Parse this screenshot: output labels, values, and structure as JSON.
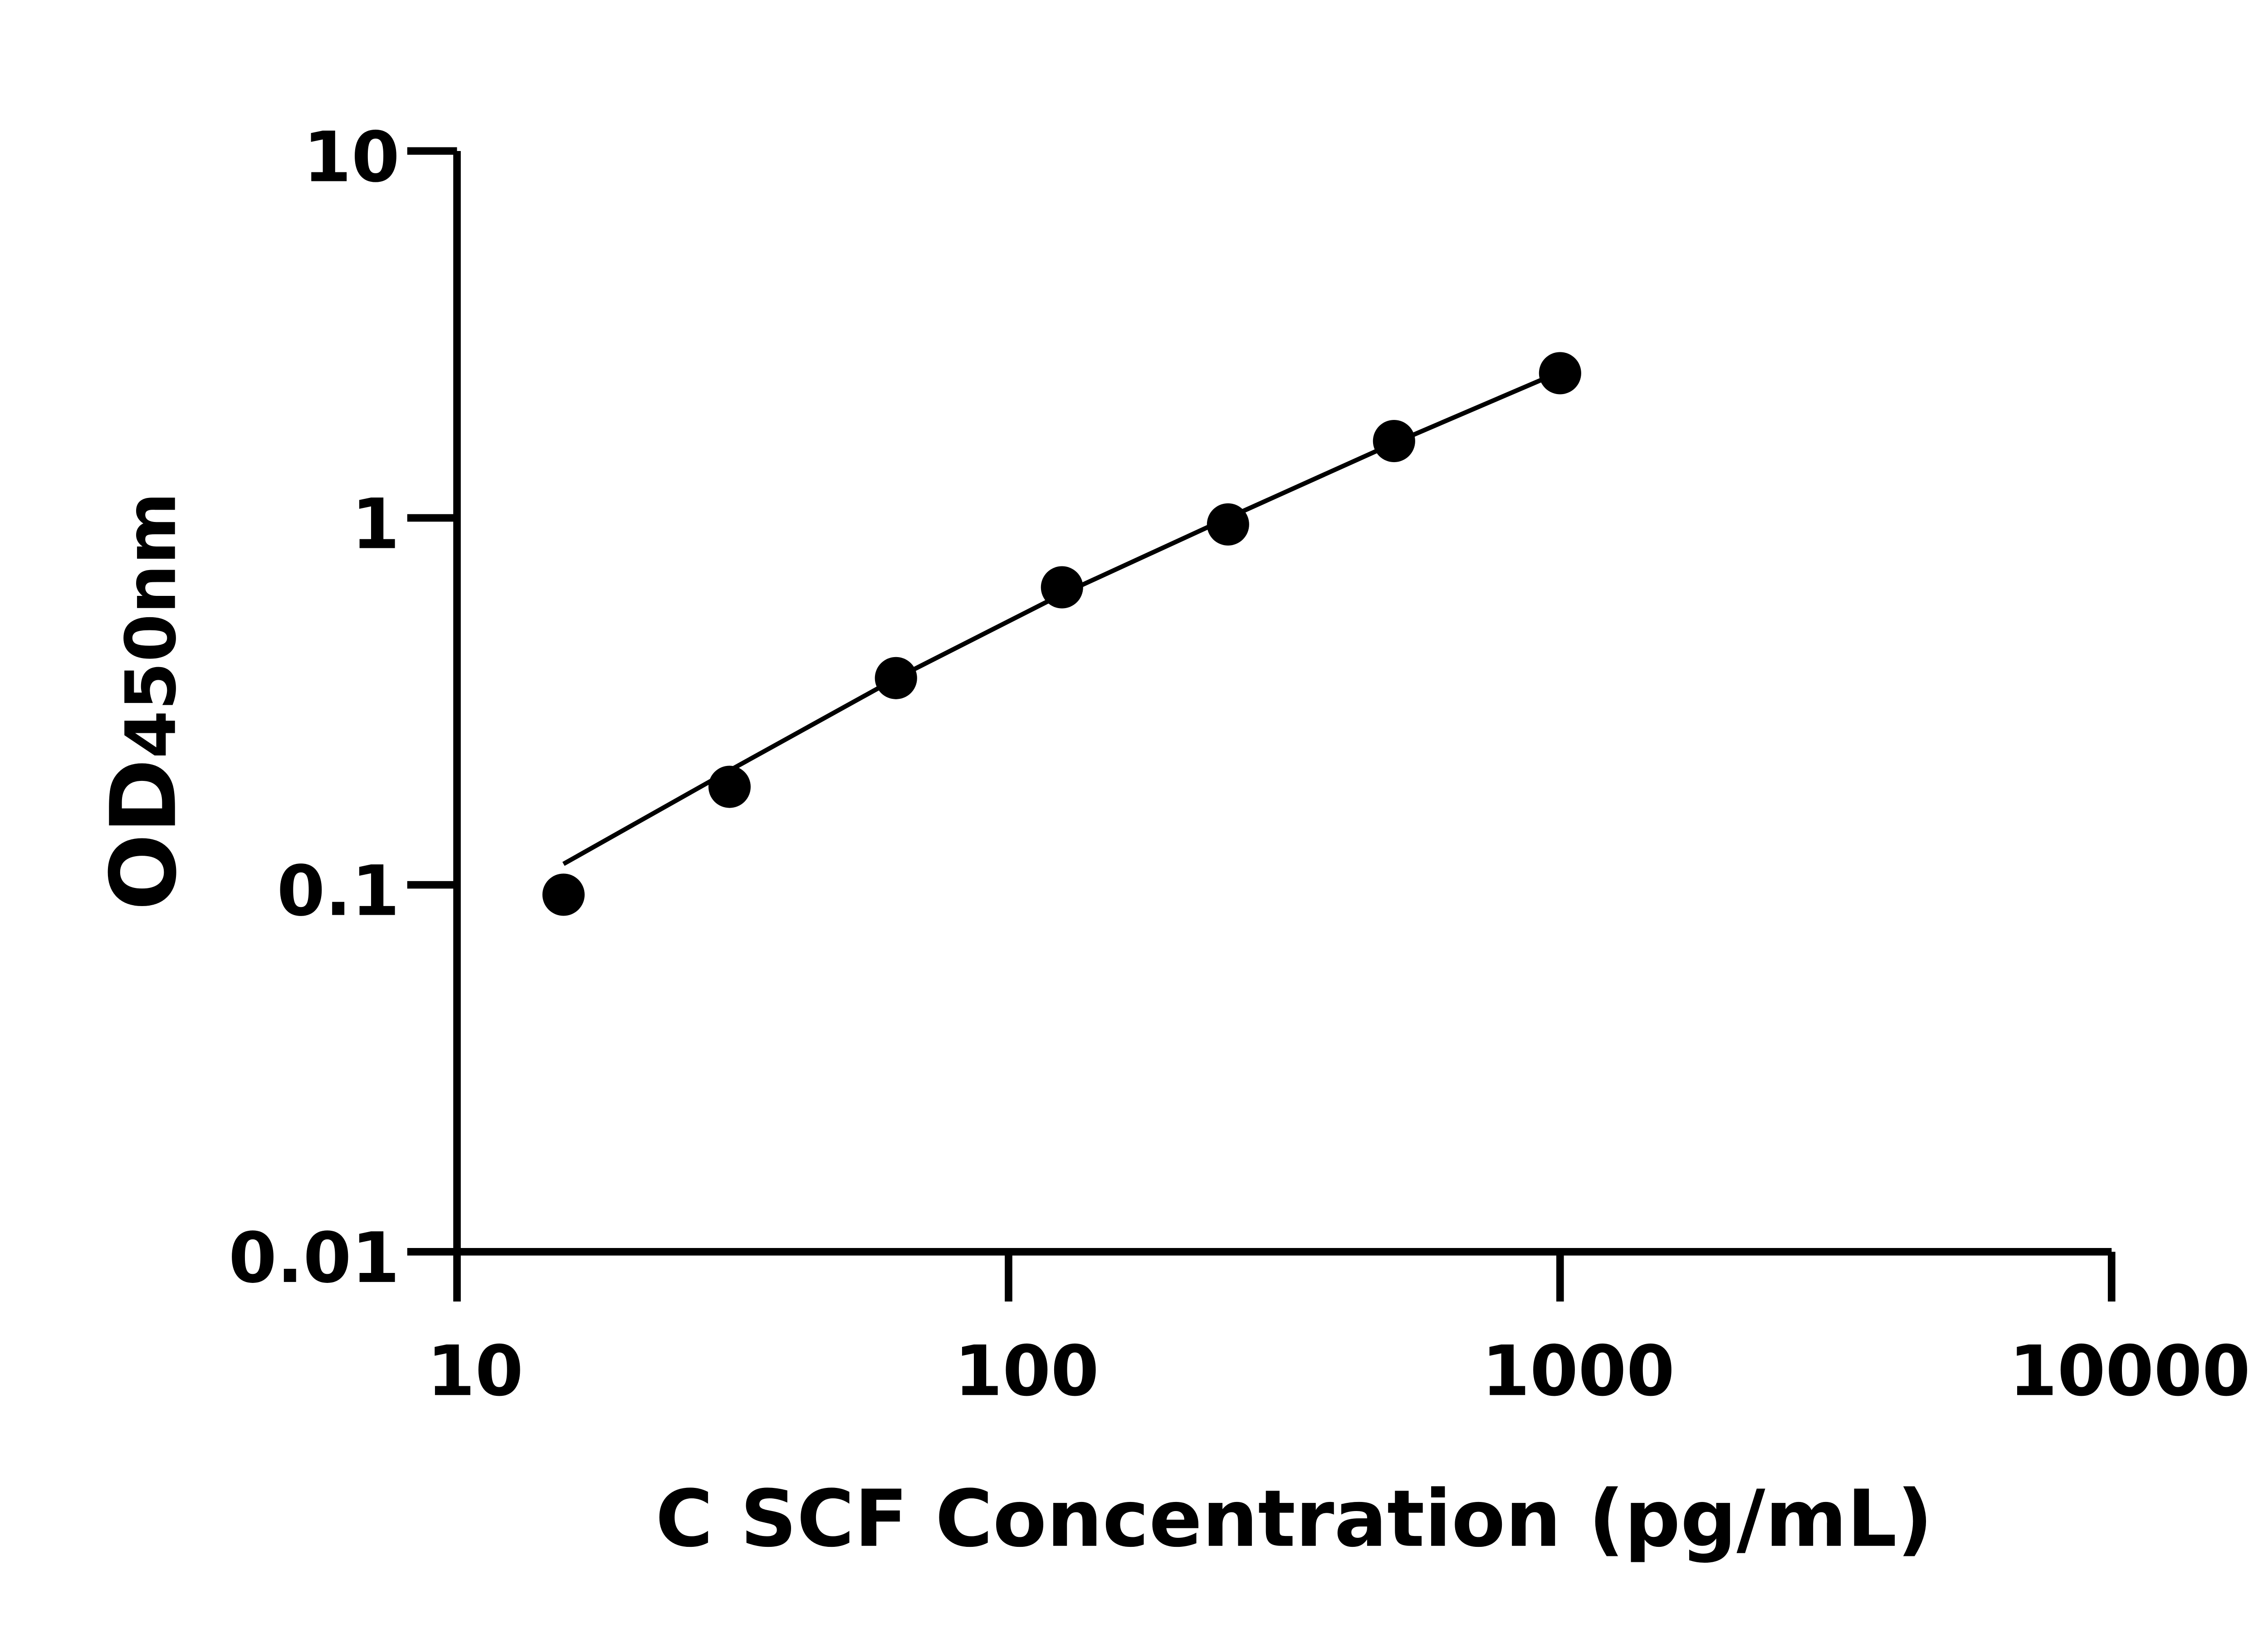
{
  "chart_data": {
    "type": "scatter",
    "title": "",
    "xlabel": "C SCF Concentration (pg/mL)",
    "ylabel_main": "OD",
    "ylabel_sub": "450nm",
    "x_scale": "log",
    "y_scale": "log",
    "xlim": [
      10,
      10000
    ],
    "ylim": [
      0.01,
      10
    ],
    "x_ticks": [
      10,
      100,
      1000,
      10000
    ],
    "x_tick_labels": [
      "10",
      "100",
      "1000",
      "10000"
    ],
    "y_ticks": [
      0.01,
      0.1,
      1,
      10
    ],
    "y_tick_labels": [
      "0.01",
      "0.1",
      "1",
      "10"
    ],
    "grid": false,
    "points": {
      "x": [
        15.6,
        31.2,
        62.5,
        125,
        250,
        500,
        1000
      ],
      "y": [
        0.094,
        0.185,
        0.366,
        0.647,
        0.96,
        1.62,
        2.48
      ]
    },
    "fit_curve": {
      "x": [
        15.6,
        31.2,
        62.5,
        125,
        250,
        500,
        1000
      ],
      "y": [
        0.114,
        0.205,
        0.365,
        0.62,
        1.0,
        1.6,
        2.5
      ]
    },
    "colors": {
      "marker": "#000000",
      "line": "#000000",
      "axis": "#000000"
    }
  }
}
